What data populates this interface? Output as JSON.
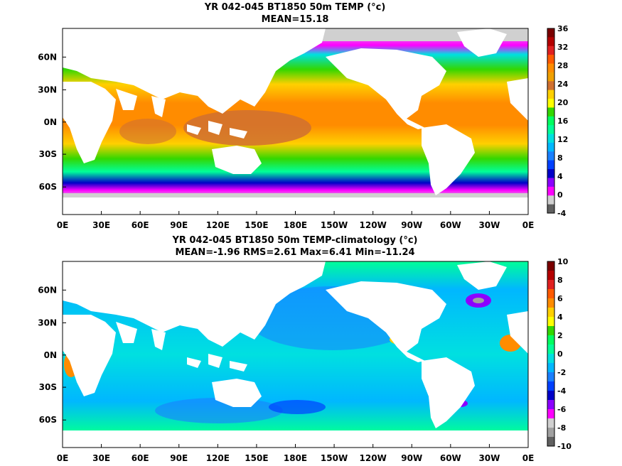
{
  "panels": [
    {
      "title_line1": "YR 042-045 BT1850 50m TEMP (°c)",
      "title_line2": "MEAN=15.18",
      "colorbar_ticks": [
        "36",
        "32",
        "28",
        "24",
        "20",
        "16",
        "12",
        "8",
        "4",
        "0",
        "-4"
      ],
      "colorbar_colors": [
        "#7a0000",
        "#b40000",
        "#e02020",
        "#ff5a00",
        "#ff8c00",
        "#f0a000",
        "#d07030",
        "#ffd000",
        "#ffff00",
        "#33d700",
        "#00ff60",
        "#00ff99",
        "#00e0e0",
        "#00b7ff",
        "#1a7fff",
        "#0040ff",
        "#0000c8",
        "#8b00ff",
        "#ff00ff",
        "#d0d0d0",
        "#606060"
      ]
    },
    {
      "title_line1": "YR 042-045 BT1850 50m TEMP-climatology (°c)",
      "title_line2": "MEAN=-1.96   RMS=2.61   Max=6.41   Min=-11.24",
      "colorbar_ticks": [
        "10",
        "8",
        "6",
        "4",
        "2",
        "0",
        "-2",
        "-4",
        "-6",
        "-8",
        "-10"
      ],
      "colorbar_colors": [
        "#7a0000",
        "#b40000",
        "#e02020",
        "#ff5a00",
        "#ff8c00",
        "#ffd000",
        "#ffff00",
        "#33d700",
        "#00ff60",
        "#00ff99",
        "#00e0e0",
        "#00b7ff",
        "#1a7fff",
        "#0040ff",
        "#0000c8",
        "#8b00ff",
        "#ff00ff",
        "#d0d0d0",
        "#a0a0a0",
        "#606060"
      ]
    }
  ],
  "x_ticks": [
    "0E",
    "30E",
    "60E",
    "90E",
    "120E",
    "150E",
    "180E",
    "150W",
    "120W",
    "90W",
    "60W",
    "30W",
    "0E"
  ],
  "y_ticks": [
    "60N",
    "30N",
    "0N",
    "30S",
    "60S"
  ]
}
